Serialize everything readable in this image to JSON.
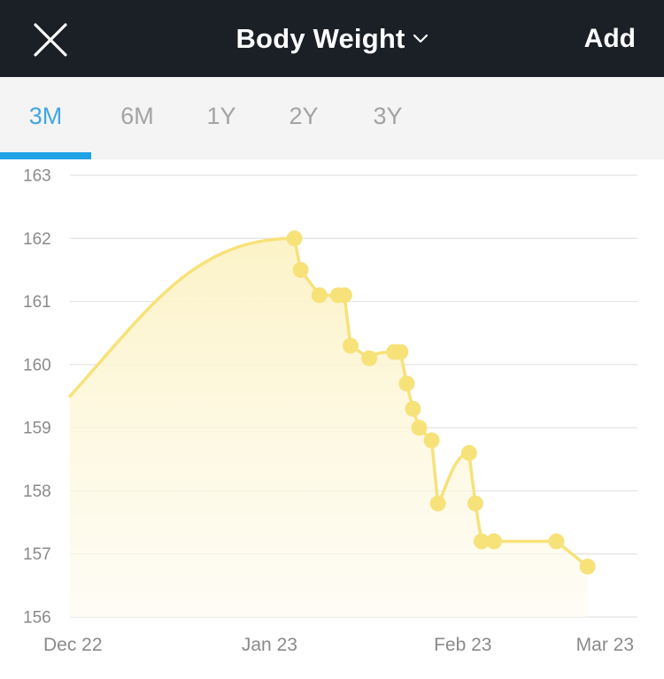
{
  "header": {
    "title": "Body Weight",
    "add_label": "Add",
    "close_icon": "close-icon",
    "dropdown_icon": "chevron-down-icon"
  },
  "tabs": [
    {
      "label": "3M",
      "active": true
    },
    {
      "label": "6M",
      "active": false
    },
    {
      "label": "1Y",
      "active": false
    },
    {
      "label": "2Y",
      "active": false
    },
    {
      "label": "3Y",
      "active": false
    }
  ],
  "colors": {
    "header_bg": "#1b1f26",
    "accent": "#1fa3e6",
    "series": "#f7e27a",
    "fill": "#fdf6d2"
  },
  "chart_data": {
    "type": "line",
    "ylim": [
      156,
      163
    ],
    "yticks": [
      156,
      157,
      158,
      159,
      160,
      161,
      162,
      163
    ],
    "xlim": [
      "2022-12-22",
      "2023-03-23"
    ],
    "xticks": [
      {
        "label": "Dec 22",
        "date": "2022-12-22"
      },
      {
        "label": "Jan 23",
        "date": "2023-01-23"
      },
      {
        "label": "Feb 23",
        "date": "2023-02-23"
      },
      {
        "label": "Mar 23",
        "date": "2023-03-23"
      }
    ],
    "grid": true,
    "smooth_start": {
      "date": "2022-12-22",
      "value": 159.5
    },
    "series": [
      {
        "points": [
          {
            "date": "2023-01-27",
            "value": 162.0
          },
          {
            "date": "2023-01-28",
            "value": 161.5
          },
          {
            "date": "2023-01-31",
            "value": 161.1
          },
          {
            "date": "2023-02-03",
            "value": 161.1
          },
          {
            "date": "2023-02-04",
            "value": 161.1
          },
          {
            "date": "2023-02-05",
            "value": 160.3
          },
          {
            "date": "2023-02-08",
            "value": 160.1
          },
          {
            "date": "2023-02-12",
            "value": 160.2
          },
          {
            "date": "2023-02-13",
            "value": 160.2
          },
          {
            "date": "2023-02-14",
            "value": 159.7
          },
          {
            "date": "2023-02-15",
            "value": 159.3
          },
          {
            "date": "2023-02-16",
            "value": 159.0
          },
          {
            "date": "2023-02-18",
            "value": 158.8
          },
          {
            "date": "2023-02-19",
            "value": 157.8
          },
          {
            "date": "2023-02-24",
            "value": 158.6
          },
          {
            "date": "2023-02-25",
            "value": 157.8
          },
          {
            "date": "2023-02-26",
            "value": 157.2
          },
          {
            "date": "2023-02-28",
            "value": 157.2
          },
          {
            "date": "2023-03-10",
            "value": 157.2
          },
          {
            "date": "2023-03-15",
            "value": 156.8
          }
        ]
      }
    ]
  }
}
